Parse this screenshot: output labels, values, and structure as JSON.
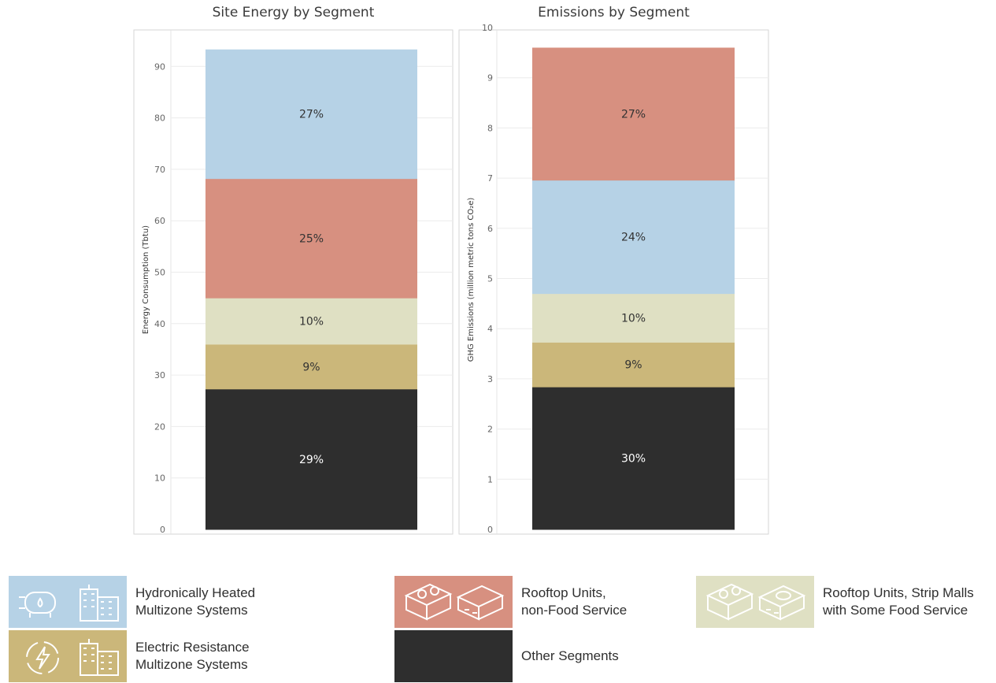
{
  "chart_data": [
    {
      "type": "bar",
      "stacked": true,
      "title": "Site Energy by Segment",
      "ylabel": "Energy Consumption (Tbtu)",
      "ylim": [
        0,
        96
      ],
      "yticks": [
        0,
        10,
        20,
        30,
        40,
        50,
        60,
        70,
        80,
        90
      ],
      "grid": true,
      "segments": [
        {
          "name": "Other Segments",
          "value": 27.3,
          "label": "29%",
          "color": "#2e2e2e",
          "text_color": "#ffffff"
        },
        {
          "name": "Electric Resistance Multizone Systems",
          "value": 8.7,
          "label": "9%",
          "color": "#cbb77a",
          "text_color": "#333333"
        },
        {
          "name": "Rooftop Units, Strip Malls with Some Food Service",
          "value": 9.0,
          "label": "10%",
          "color": "#dfe0c3",
          "text_color": "#333333"
        },
        {
          "name": "Rooftop Units, non-Food Service",
          "value": 23.2,
          "label": "25%",
          "color": "#d79080",
          "text_color": "#333333"
        },
        {
          "name": "Hydronically Heated Multizone Systems",
          "value": 25.1,
          "label": "27%",
          "color": "#b6d2e6",
          "text_color": "#333333"
        }
      ]
    },
    {
      "type": "bar",
      "stacked": true,
      "title": "Emissions by Segment",
      "ylabel": "GHG Emissions (million metric tons CO₂e)",
      "ylim": [
        0,
        10
      ],
      "yticks": [
        0,
        1,
        2,
        3,
        4,
        5,
        6,
        7,
        8,
        9,
        10
      ],
      "grid": true,
      "segments": [
        {
          "name": "Other Segments",
          "value": 2.84,
          "label": "30%",
          "color": "#2e2e2e",
          "text_color": "#ffffff"
        },
        {
          "name": "Electric Resistance Multizone Systems",
          "value": 0.89,
          "label": "9%",
          "color": "#cbb77a",
          "text_color": "#333333"
        },
        {
          "name": "Rooftop Units, Strip Malls with Some Food Service",
          "value": 0.97,
          "label": "10%",
          "color": "#dfe0c3",
          "text_color": "#333333"
        },
        {
          "name": "Hydronically Heated Multizone Systems",
          "value": 2.26,
          "label": "24%",
          "color": "#b6d2e6",
          "text_color": "#333333"
        },
        {
          "name": "Rooftop Units, non-Food Service",
          "value": 2.64,
          "label": "27%",
          "color": "#d79080",
          "text_color": "#333333"
        }
      ]
    }
  ],
  "legend": [
    {
      "label": "Hydronically Heated\nMultizone Systems",
      "color": "#b6d2e6",
      "icon": "boiler-building-icon"
    },
    {
      "label": "Electric Resistance\nMultizone Systems",
      "color": "#cbb77a",
      "icon": "electric-building-icon"
    },
    {
      "label": "Rooftop Units,\nnon-Food Service",
      "color": "#d79080",
      "icon": "rooftop-unit-icon"
    },
    {
      "label": "Other  Segments",
      "color": "#2e2e2e",
      "icon": ""
    },
    {
      "label": "Rooftop Units, Strip Malls\nwith Some Food Service",
      "color": "#dfe0c3",
      "icon": "rooftop-unit-food-icon"
    }
  ]
}
